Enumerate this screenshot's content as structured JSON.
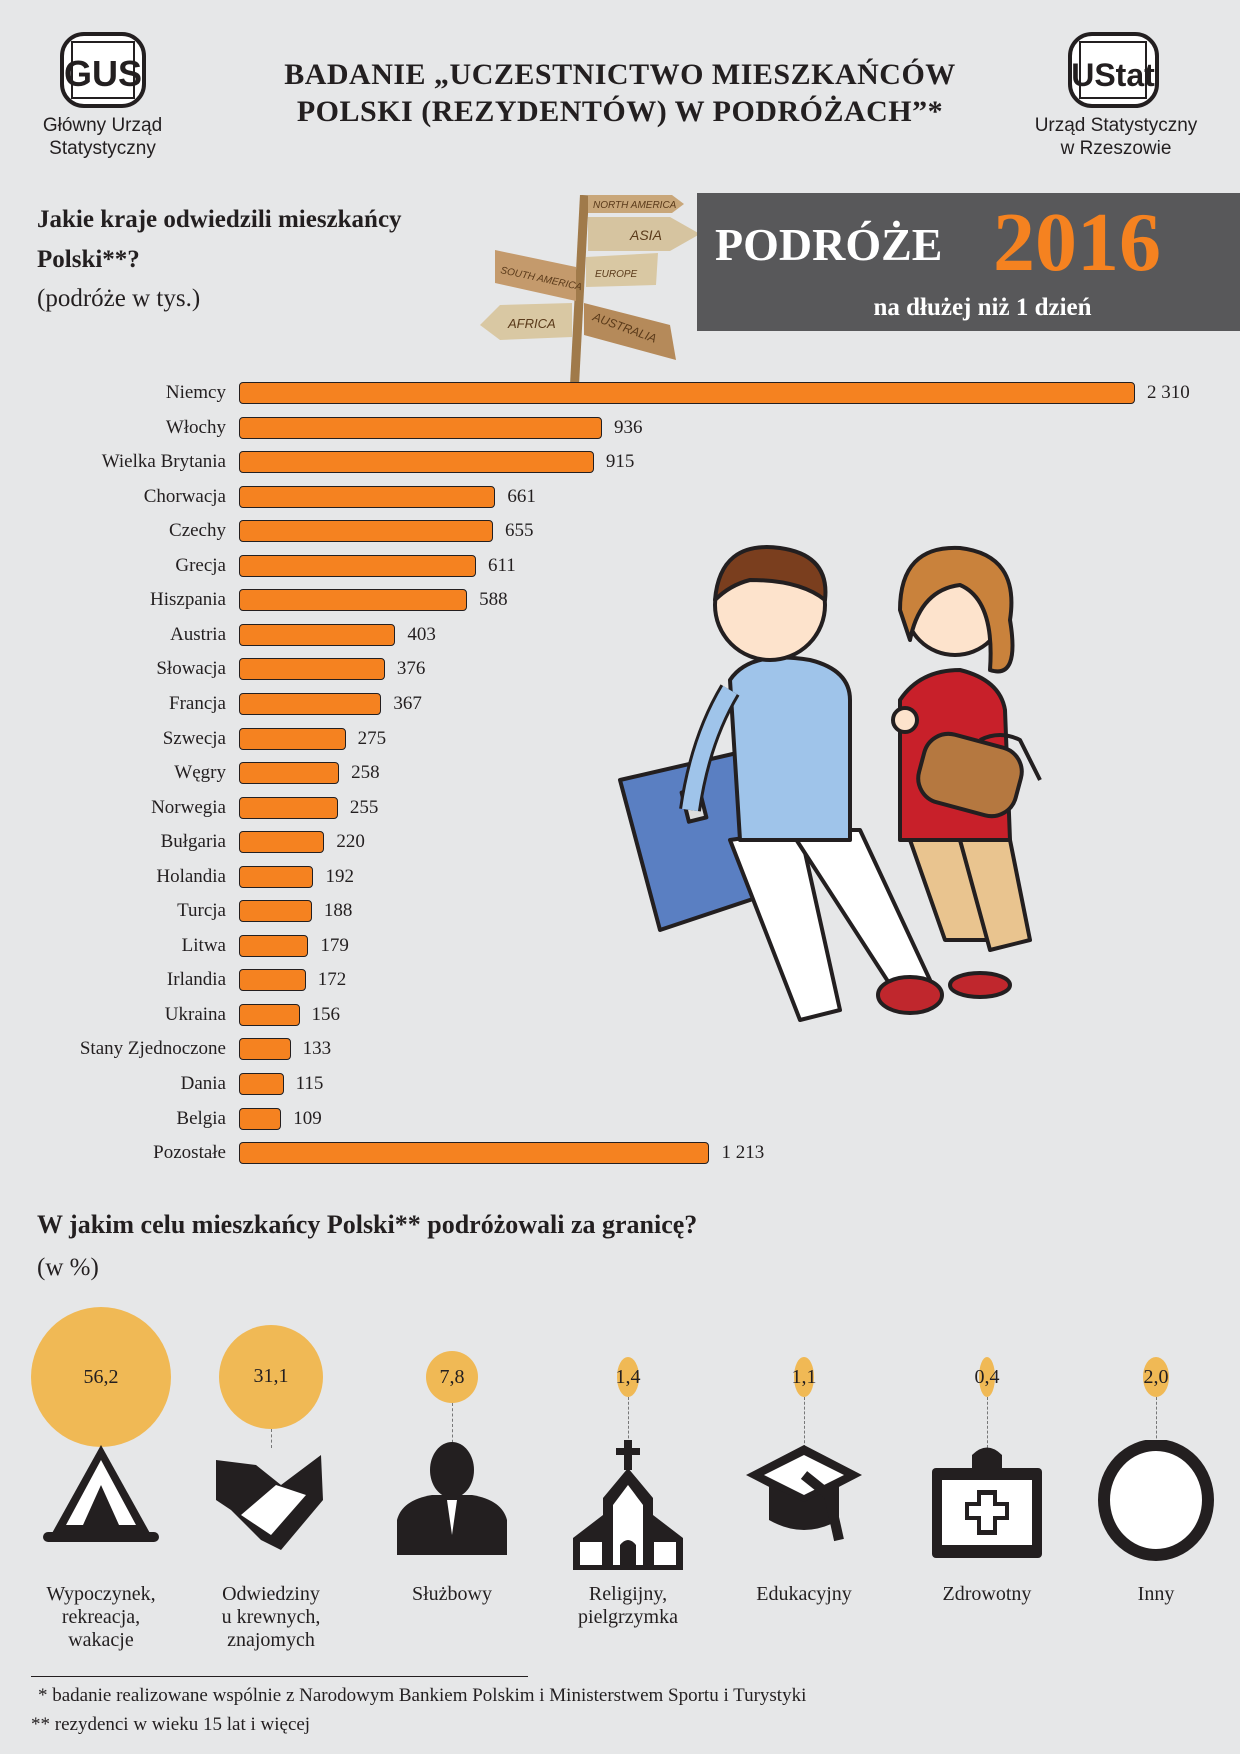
{
  "header": {
    "left_logo": {
      "mark": "GUS",
      "caption_lines": [
        "Główny Urząd",
        "Statystyczny"
      ]
    },
    "title_lines": [
      "BADANIE „UCZESTNICTWO MIESZKAŃCÓW",
      "POLSKI (REZYDENTÓW) W PODRÓŻACH”*"
    ],
    "right_logo": {
      "mark": "UStat",
      "caption_lines": [
        "Urząd Statystyczny",
        "w Rzeszowie"
      ]
    }
  },
  "banner": {
    "word": "PODRÓŻE",
    "year": "2016",
    "subtitle": "na dłużej niż 1 dzień"
  },
  "signpost": {
    "signs": [
      "NORTH AMERICA",
      "ASIA",
      "SOUTH AMERICA",
      "EUROPE",
      "AFRICA",
      "AUSTRALIA"
    ]
  },
  "chart_data": [
    {
      "type": "bar",
      "orientation": "horizontal",
      "title_lines": [
        "Jakie kraje odwiedzili mieszkańcy",
        "Polski**?"
      ],
      "subtitle": "(podróże w tys.)",
      "categories": [
        "Niemcy",
        "Włochy",
        "Wielka Brytania",
        "Chorwacja",
        "Czechy",
        "Grecja",
        "Hiszpania",
        "Austria",
        "Słowacja",
        "Francja",
        "Szwecja",
        "Węgry",
        "Norwegia",
        "Bułgaria",
        "Holandia",
        "Turcja",
        "Litwa",
        "Irlandia",
        "Ukraina",
        "Stany Zjednoczone",
        "Dania",
        "Belgia",
        "Pozostałe"
      ],
      "values": [
        2310,
        936,
        915,
        661,
        655,
        611,
        588,
        403,
        376,
        367,
        275,
        258,
        255,
        220,
        192,
        188,
        179,
        172,
        156,
        133,
        115,
        109,
        1213
      ],
      "value_labels": [
        "2 310",
        "936",
        "915",
        "661",
        "655",
        "611",
        "588",
        "403",
        "376",
        "367",
        "275",
        "258",
        "255",
        "220",
        "192",
        "188",
        "179",
        "172",
        "156",
        "133",
        "115",
        "109",
        "1 213"
      ],
      "bar_color": "#f58220",
      "grid": false
    },
    {
      "type": "bubble",
      "title": "W jakim celu mieszkańcy Polski** podróżowali za granicę?",
      "subtitle": "(w %)",
      "categories": [
        {
          "label_lines": [
            "Wypoczynek,",
            "rekreacja,",
            "wakacje"
          ],
          "icon": "tent-icon"
        },
        {
          "label_lines": [
            "Odwiedziny",
            "u krewnych,",
            "znajomych"
          ],
          "icon": "handshake-icon"
        },
        {
          "label_lines": [
            "Służbowy"
          ],
          "icon": "businessman-icon"
        },
        {
          "label_lines": [
            "Religijny,",
            "pielgrzymka"
          ],
          "icon": "church-icon"
        },
        {
          "label_lines": [
            "Edukacyjny"
          ],
          "icon": "graduation-cap-icon"
        },
        {
          "label_lines": [
            "Zdrowotny"
          ],
          "icon": "first-aid-kit-icon"
        },
        {
          "label_lines": [
            "Inny"
          ],
          "icon": "circle-icon"
        }
      ],
      "values": [
        56.2,
        31.1,
        7.8,
        1.4,
        1.1,
        0.4,
        2.0
      ],
      "value_labels": [
        "56,2",
        "31,1",
        "7,8",
        "1,4",
        "1,1",
        "0,4",
        "2,0"
      ],
      "bubble_color": "#f0b955"
    }
  ],
  "footnotes": [
    "* badanie realizowane wspólnie z Narodowym Bankiem Polskim i Ministerstwem Sportu i Turystyki",
    "** rezydenci w wieku 15 lat i więcej"
  ],
  "colors": {
    "background": "#e6e7e8",
    "accent": "#f58220",
    "banner": "#58585a",
    "bubble": "#f0b955"
  }
}
